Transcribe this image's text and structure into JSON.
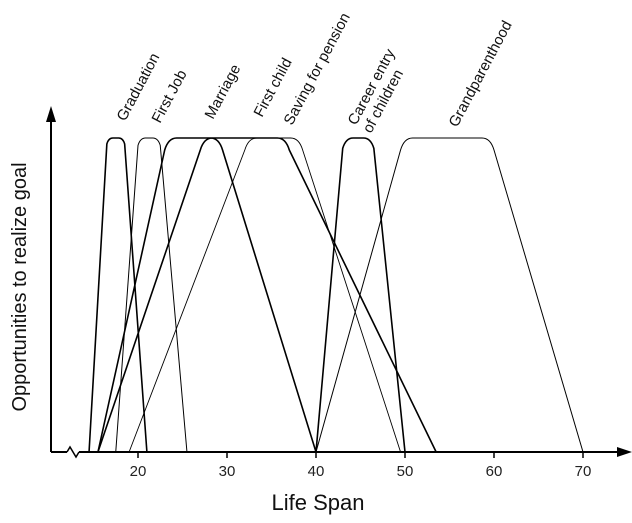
{
  "chart_data": {
    "type": "area",
    "title": "",
    "xlabel": "Life Span",
    "ylabel": "Opportunities to realize goal",
    "xlim": [
      10,
      75
    ],
    "ylim": [
      0,
      1
    ],
    "x_ticks": [
      20,
      30,
      40,
      50,
      60,
      70
    ],
    "grid": false,
    "legend": "none",
    "series": [
      {
        "name": "Graduation",
        "label_lines": [
          "Graduation"
        ],
        "start": 14.5,
        "rise_end": 16.5,
        "plateau_end": 18.5,
        "end": 21,
        "stroke": 1.6
      },
      {
        "name": "First Job",
        "label_lines": [
          "First Job"
        ],
        "start": 17.5,
        "rise_end": 20,
        "plateau_end": 22.5,
        "end": 25.5,
        "stroke": 1.0
      },
      {
        "name": "Marriage",
        "label_lines": [
          "Marriage"
        ],
        "start": 15.5,
        "rise_end": 23,
        "plateau_end": 29.5,
        "end": 40,
        "stroke": 1.6
      },
      {
        "name": "First child",
        "label_lines": [
          "First child"
        ],
        "start": 15.5,
        "rise_end": 27,
        "plateau_end": 37,
        "end": 53.5,
        "stroke": 1.6
      },
      {
        "name": "Saving for pension",
        "label_lines": [
          "Saving for pension"
        ],
        "start": 19,
        "rise_end": 32,
        "plateau_end": 38.5,
        "end": 49.5,
        "stroke": 0.9
      },
      {
        "name": "Career entry of children",
        "label_lines": [
          "Career entry",
          "of children"
        ],
        "start": 40,
        "rise_end": 43,
        "plateau_end": 46.5,
        "end": 50,
        "stroke": 1.6
      },
      {
        "name": "Grandparenthood",
        "label_lines": [
          "Grandparenthood"
        ],
        "start": 40,
        "rise_end": 49.5,
        "plateau_end": 60,
        "end": 70,
        "stroke": 1.0
      }
    ]
  }
}
